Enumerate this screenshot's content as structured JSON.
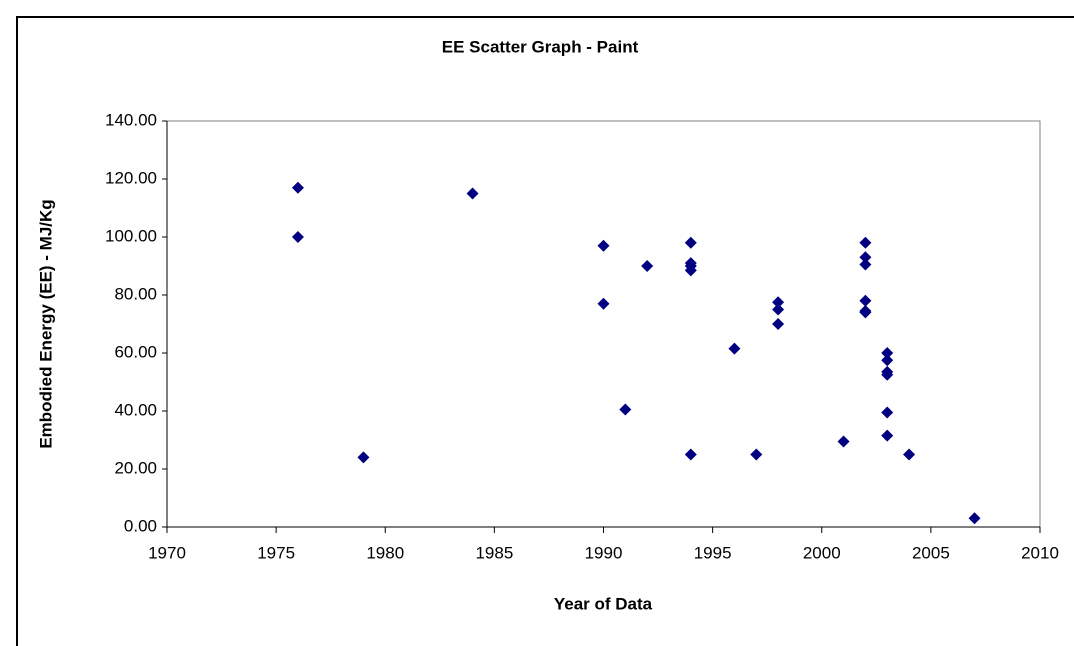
{
  "chart_data": {
    "type": "scatter",
    "title": "EE Scatter Graph - Paint",
    "xlabel": "Year of Data",
    "ylabel": "Embodied Energy (EE) - MJ/Kg",
    "x": [
      1976,
      1976,
      1979,
      1984,
      1990,
      1990,
      1991,
      1992,
      1994,
      1994,
      1994,
      1994,
      1994,
      1996,
      1997,
      1998,
      1998,
      1998,
      2001,
      2002,
      2002,
      2002,
      2002,
      2002,
      2002,
      2003,
      2003,
      2003,
      2003,
      2003,
      2003,
      2004,
      2007
    ],
    "values": [
      117,
      100,
      24,
      115,
      97,
      77,
      40.5,
      90,
      98,
      91,
      90,
      88.5,
      25,
      61.5,
      25,
      77.5,
      75,
      70,
      29.5,
      98,
      93,
      90.5,
      78,
      74.5,
      74,
      60,
      57.5,
      53.5,
      52.5,
      39.5,
      31.5,
      25,
      3
    ],
    "color": "#000080",
    "xlim": [
      1970,
      2010
    ],
    "xticks": [
      1970,
      1975,
      1980,
      1985,
      1990,
      1995,
      2000,
      2005,
      2010
    ],
    "ylim": [
      0,
      140
    ],
    "yticks": [
      {
        "value": 0,
        "label": "0.00"
      },
      {
        "value": 20,
        "label": "20.00"
      },
      {
        "value": 40,
        "label": "40.00"
      },
      {
        "value": 60,
        "label": "60.00"
      },
      {
        "value": 80,
        "label": "80.00"
      },
      {
        "value": 100,
        "label": "100.00"
      },
      {
        "value": 120,
        "label": "120.00"
      },
      {
        "value": 140,
        "label": "140.00"
      }
    ],
    "grid": false
  }
}
